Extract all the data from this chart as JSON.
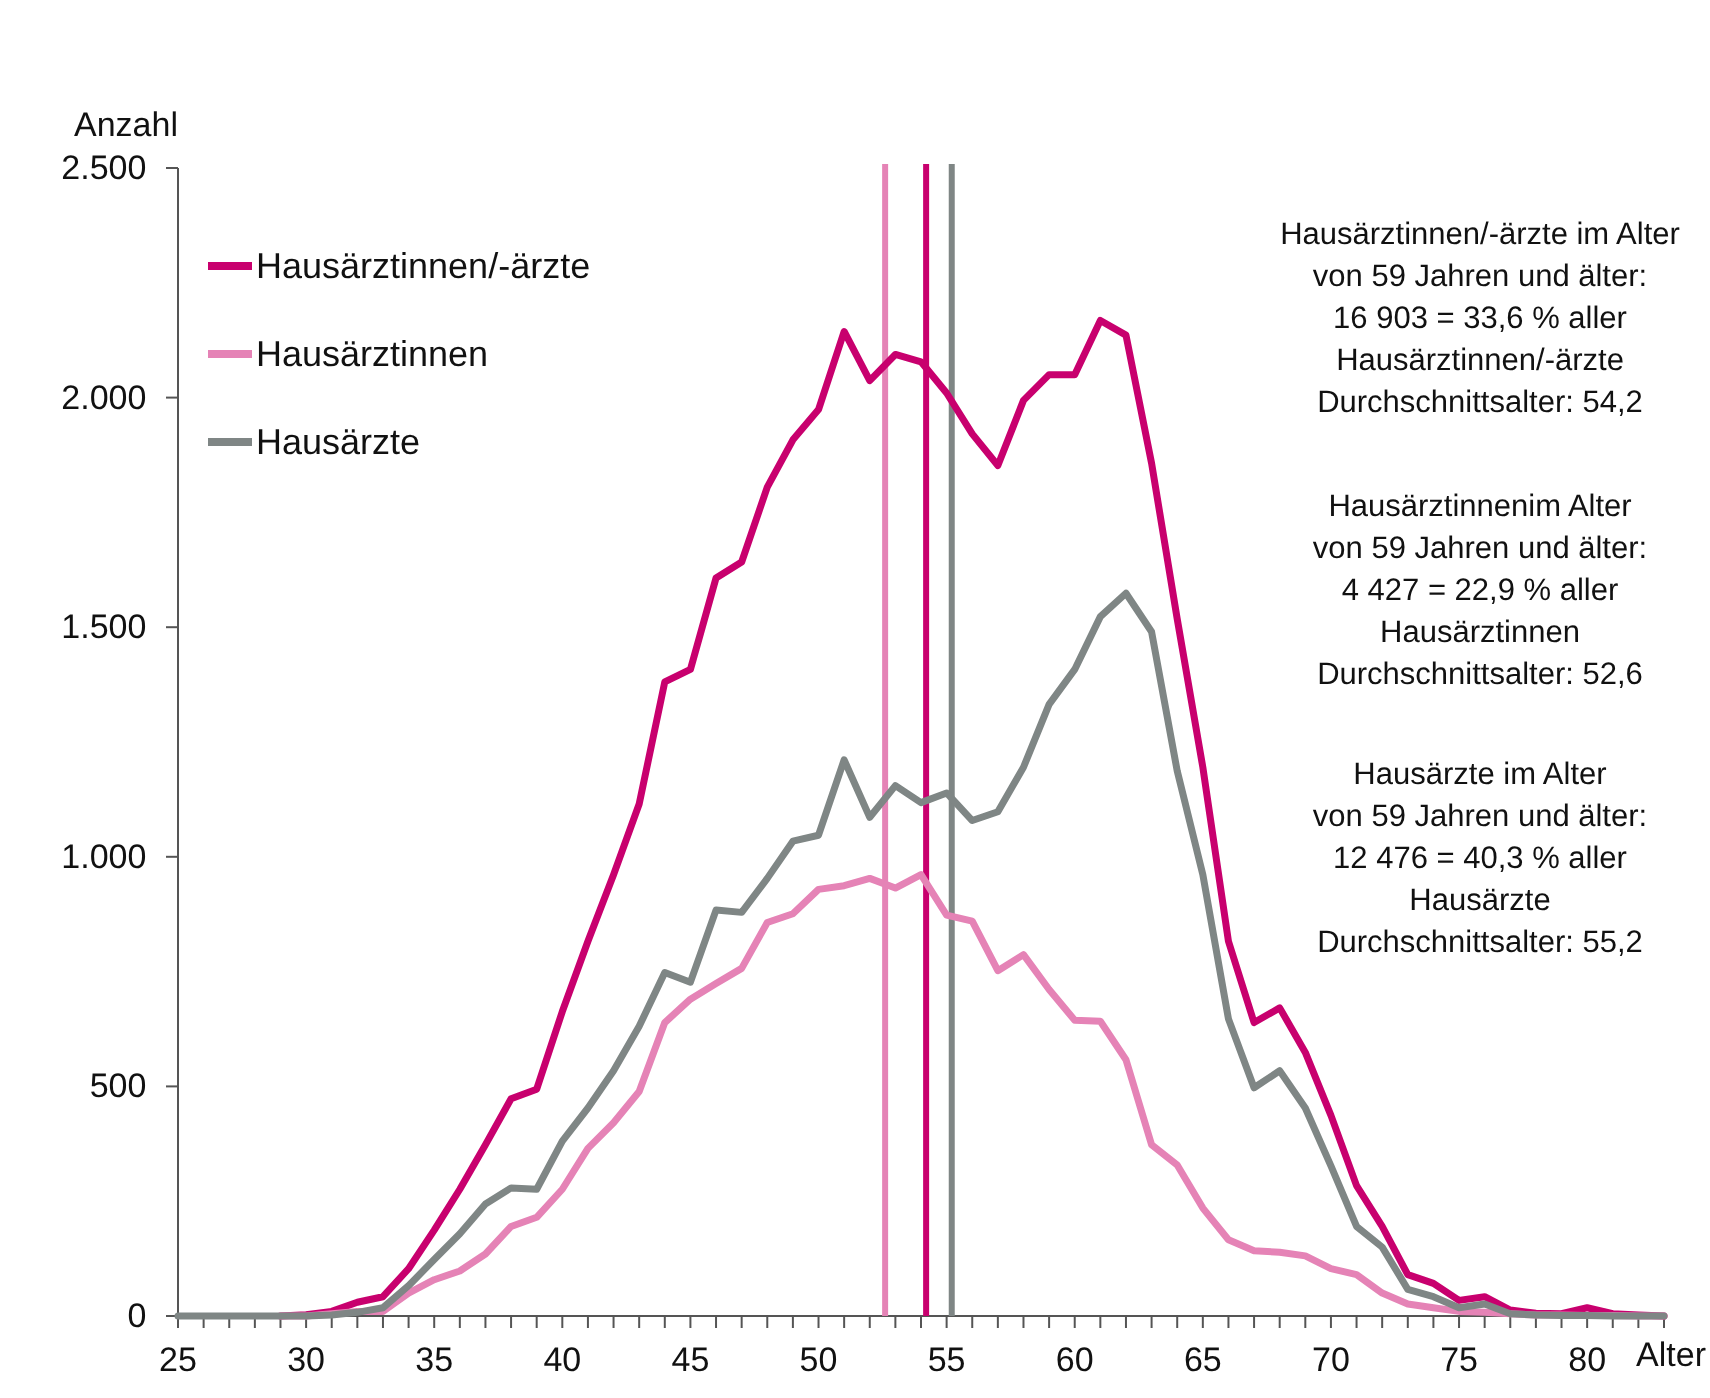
{
  "chart_data": {
    "type": "line",
    "xlabel": "Alter",
    "ylabel": "Anzahl",
    "x": [
      25,
      26,
      27,
      28,
      29,
      30,
      31,
      32,
      33,
      34,
      35,
      36,
      37,
      38,
      39,
      40,
      41,
      42,
      43,
      44,
      45,
      46,
      47,
      48,
      49,
      50,
      51,
      52,
      53,
      54,
      55,
      56,
      57,
      58,
      59,
      60,
      61,
      62,
      63,
      64,
      65,
      66,
      67,
      68,
      69,
      70,
      71,
      72,
      73,
      74,
      75,
      76,
      77,
      78,
      79,
      80,
      81,
      82,
      83
    ],
    "series": [
      {
        "name": "Hausärztinnen/-ärzte",
        "color": "#c8006e",
        "values": [
          null,
          null,
          null,
          null,
          0,
          3,
          10,
          30,
          42,
          103,
          187,
          276,
          373,
          473,
          494,
          663,
          816,
          961,
          1115,
          1381,
          1408,
          1607,
          1642,
          1805,
          1908,
          1974,
          2144,
          2037,
          2094,
          2078,
          2010,
          1921,
          1852,
          1994,
          2050,
          2050,
          2168,
          2136,
          1857,
          1518,
          1195,
          816,
          639,
          671,
          574,
          437,
          284,
          195,
          90,
          71,
          34,
          42,
          13,
          6,
          5,
          18,
          5,
          2,
          0
        ]
      },
      {
        "name": "Hausärztinnen",
        "color": "#e583b6",
        "values": [
          null,
          null,
          null,
          null,
          0,
          0,
          5,
          10,
          10,
          50,
          79,
          98,
          135,
          195,
          215,
          276,
          365,
          421,
          489,
          639,
          690,
          724,
          757,
          857,
          876,
          929,
          937,
          953,
          932,
          961,
          873,
          860,
          752,
          787,
          711,
          644,
          642,
          558,
          373,
          329,
          235,
          166,
          142,
          139,
          131,
          103,
          90,
          50,
          26,
          18,
          10,
          8,
          5,
          2,
          2,
          1,
          1,
          0,
          0
        ]
      },
      {
        "name": "Hausärzte",
        "color": "#7f8685",
        "values": [
          0,
          0,
          0,
          0,
          0,
          0,
          2,
          8,
          18,
          66,
          123,
          179,
          244,
          279,
          276,
          381,
          453,
          534,
          631,
          748,
          727,
          884,
          879,
          953,
          1034,
          1047,
          1211,
          1086,
          1155,
          1118,
          1139,
          1079,
          1098,
          1195,
          1332,
          1408,
          1523,
          1574,
          1490,
          1187,
          961,
          647,
          497,
          534,
          453,
          327,
          195,
          150,
          58,
          42,
          18,
          26,
          5,
          2,
          1,
          1,
          0,
          0,
          0
        ]
      }
    ],
    "xlim": [
      25,
      83
    ],
    "xticks": [
      25,
      {
        "value": 26,
        "label": null
      },
      {
        "value": 27,
        "label": null
      },
      {
        "value": 28,
        "label": null
      },
      {
        "value": 29,
        "label": null
      },
      30,
      {
        "value": 31,
        "label": null
      },
      {
        "value": 32,
        "label": null
      },
      {
        "value": 33,
        "label": null
      },
      {
        "value": 34,
        "label": null
      },
      35,
      {
        "value": 36,
        "label": null
      },
      {
        "value": 37,
        "label": null
      },
      {
        "value": 38,
        "label": null
      },
      {
        "value": 39,
        "label": null
      },
      40,
      {
        "value": 41,
        "label": null
      },
      {
        "value": 42,
        "label": null
      },
      {
        "value": 43,
        "label": null
      },
      {
        "value": 44,
        "label": null
      },
      45,
      {
        "value": 46,
        "label": null
      },
      {
        "value": 47,
        "label": null
      },
      {
        "value": 48,
        "label": null
      },
      {
        "value": 49,
        "label": null
      },
      50,
      {
        "value": 51,
        "label": null
      },
      {
        "value": 52,
        "label": null
      },
      {
        "value": 53,
        "label": null
      },
      {
        "value": 54,
        "label": null
      },
      55,
      {
        "value": 56,
        "label": null
      },
      {
        "value": 57,
        "label": null
      },
      {
        "value": 58,
        "label": null
      },
      {
        "value": 59,
        "label": null
      },
      60,
      {
        "value": 61,
        "label": null
      },
      {
        "value": 62,
        "label": null
      },
      {
        "value": 63,
        "label": null
      },
      {
        "value": 64,
        "label": null
      },
      65,
      {
        "value": 66,
        "label": null
      },
      {
        "value": 67,
        "label": null
      },
      {
        "value": 68,
        "label": null
      },
      {
        "value": 69,
        "label": null
      },
      70,
      {
        "value": 71,
        "label": null
      },
      {
        "value": 72,
        "label": null
      },
      {
        "value": 73,
        "label": null
      },
      {
        "value": 74,
        "label": null
      },
      75,
      {
        "value": 76,
        "label": null
      },
      {
        "value": 77,
        "label": null
      },
      {
        "value": 78,
        "label": null
      },
      {
        "value": 79,
        "label": null
      },
      80,
      {
        "value": 81,
        "label": null
      },
      {
        "value": 82,
        "label": null
      },
      {
        "value": 83,
        "label": null
      }
    ],
    "ylim": [
      0,
      2500
    ],
    "yticks": [
      0,
      500,
      {
        "value": 1000,
        "label": "1.000"
      },
      {
        "value": 1500,
        "label": "1.500"
      },
      {
        "value": 2000,
        "label": "2.000"
      },
      {
        "value": 2500,
        "label": "2.500"
      }
    ],
    "ref_lines": [
      {
        "axis": "x",
        "value": 52.6,
        "color": "#e583b6"
      },
      {
        "axis": "x",
        "value": 54.2,
        "color": "#c8006e"
      },
      {
        "axis": "x",
        "value": 55.2,
        "color": "#7f8685"
      }
    ],
    "annotations": [
      "Hausärztinnen/-ärzte im Alter\nvon 59 Jahren und älter:\n16 903 = 33,6 % aller\nHausärztinnen/-ärzte\nDurchschnittsalter: 54,2",
      "Hausärztinnenim Alter\nvon 59 Jahren und älter:\n4 427 = 22,9 % aller\nHausärztinnen\nDurchschnittsalter: 52,6",
      "Hausärzte im Alter\nvon 59 Jahren und älter:\n12 476 = 40,3 % aller\nHausärzte\nDurchschnittsalter: 55,2"
    ],
    "legend": "top left",
    "marker": "none",
    "line_style": "solid",
    "grid": false
  }
}
